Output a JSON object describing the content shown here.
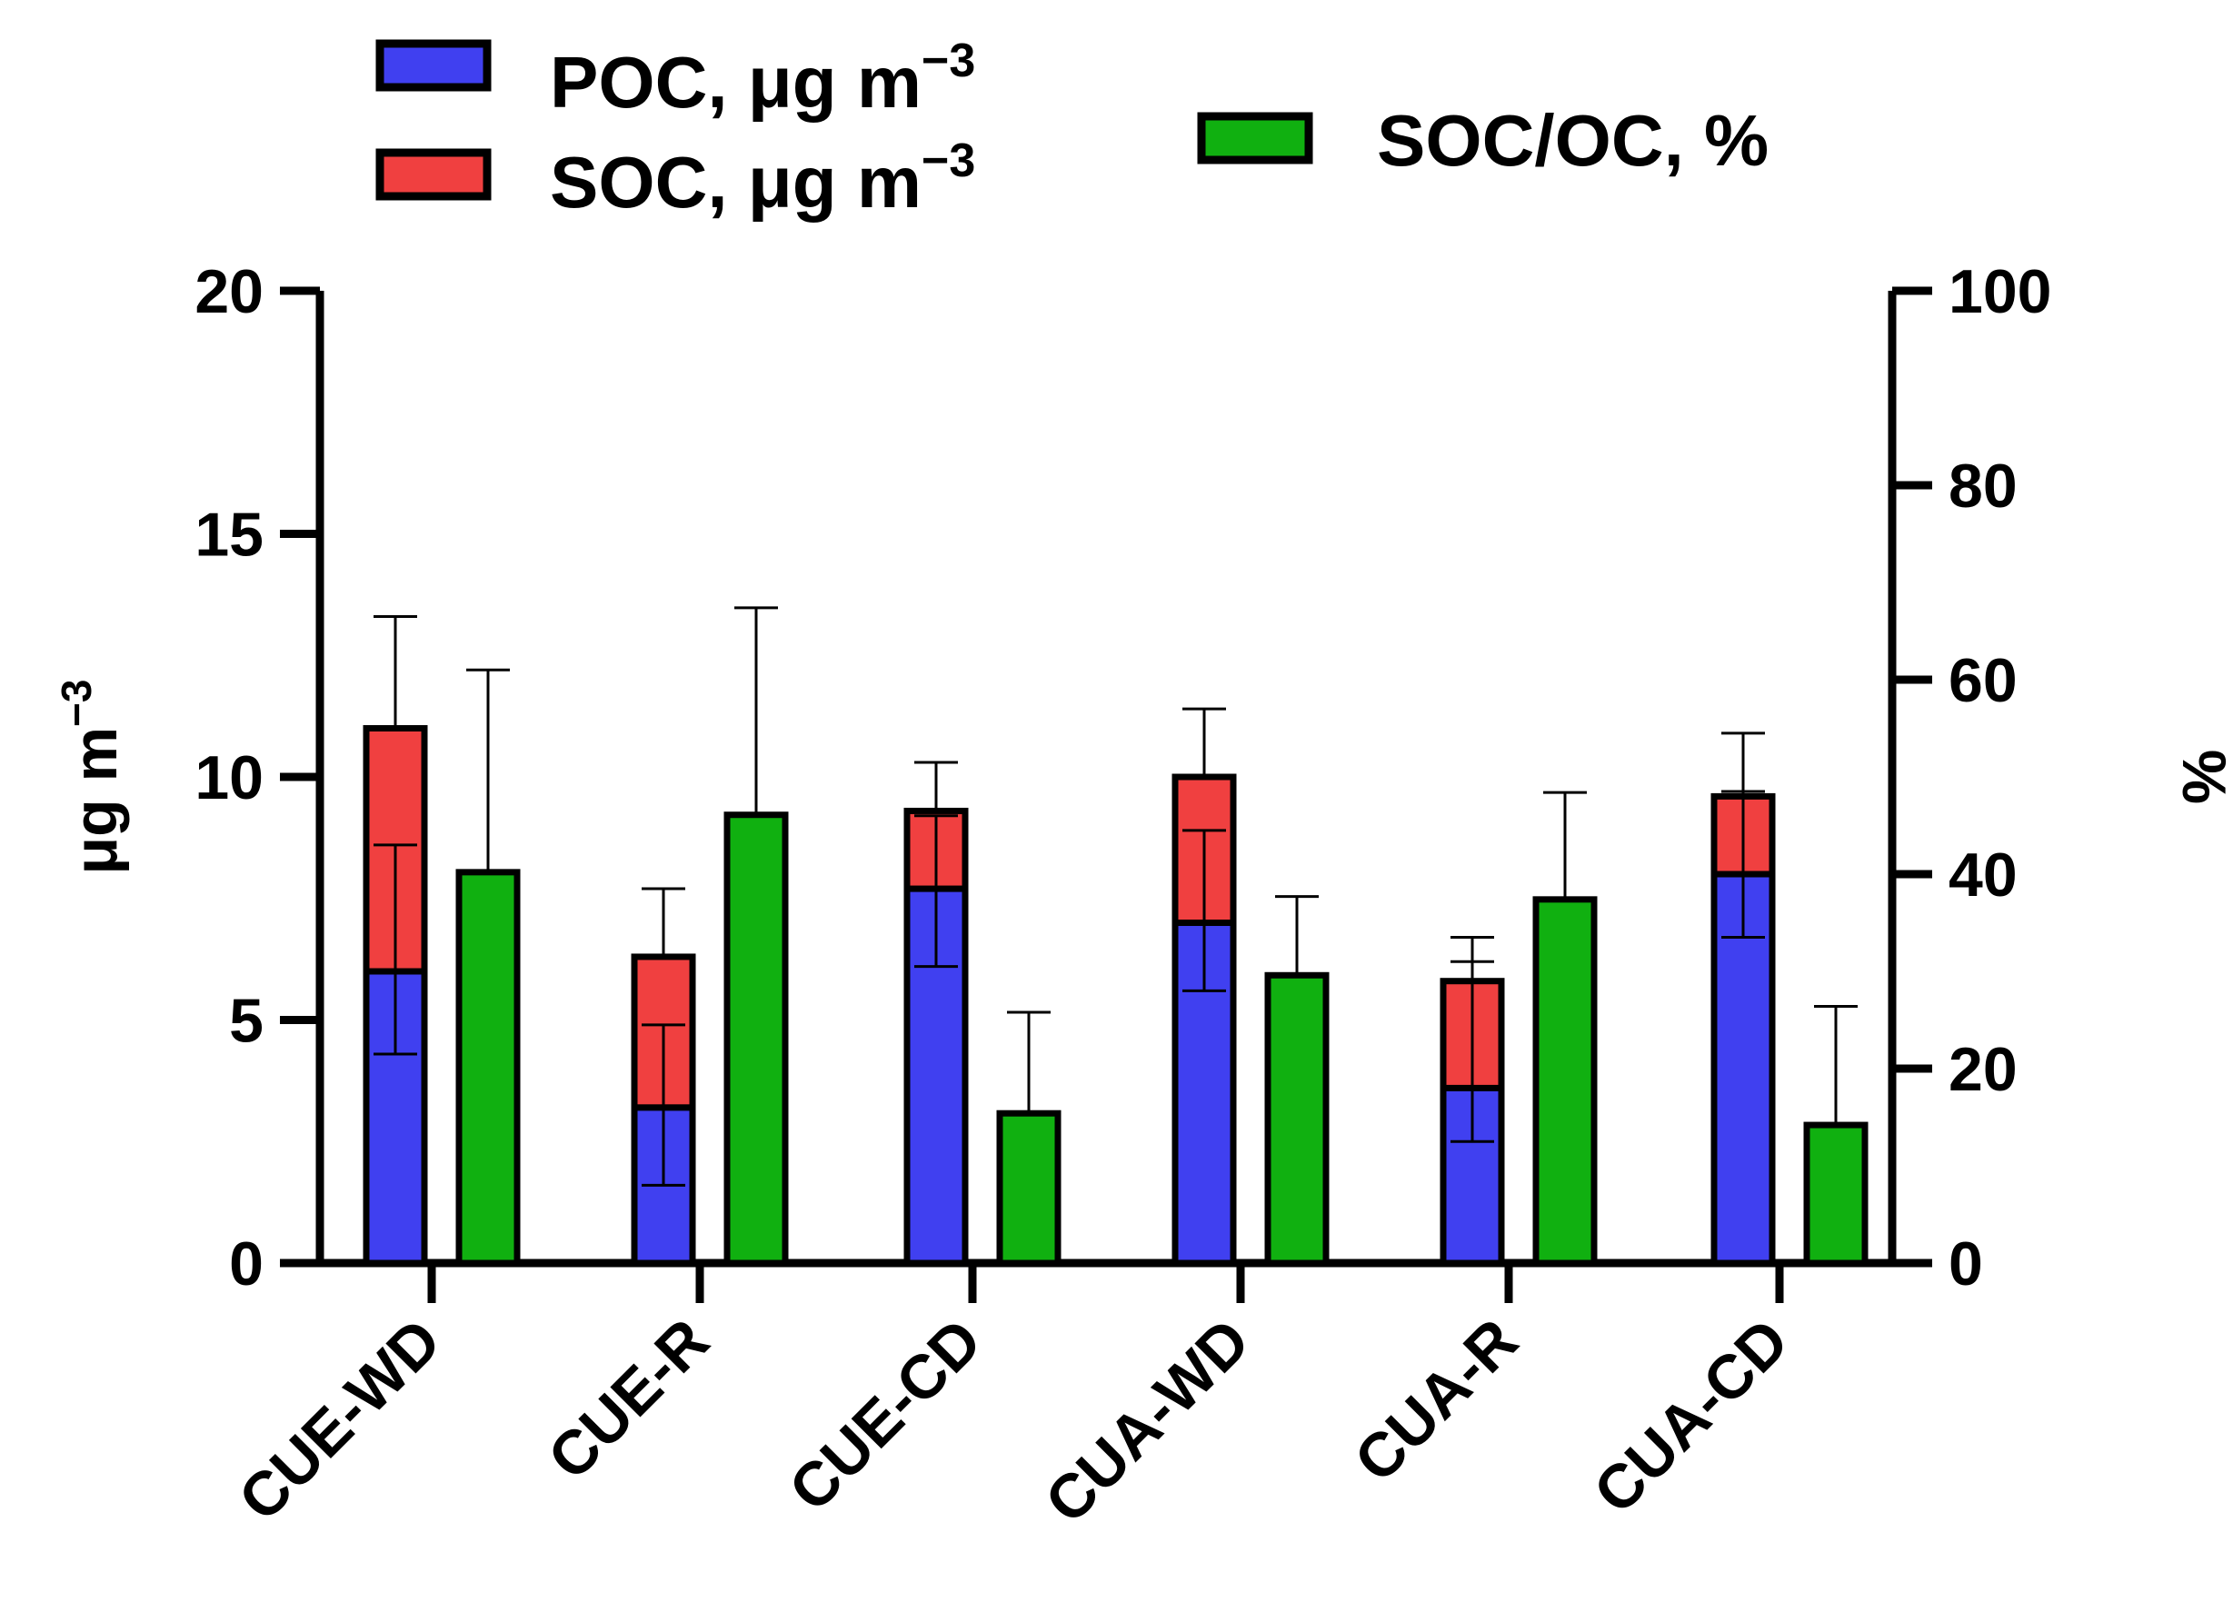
{
  "chart_data": {
    "type": "bar",
    "categories": [
      "CUE-WD",
      "CUE-R",
      "CUE-CD",
      "CUA-WD",
      "CUA-R",
      "CUA-CD"
    ],
    "series": [
      {
        "name": "POC, μg m⁻³",
        "axis": "left",
        "stack": "oc",
        "color": "#4040f0",
        "values": [
          6.0,
          3.2,
          7.7,
          7.0,
          3.6,
          8.0
        ],
        "error_center": [
          6.0,
          3.2,
          7.7,
          7.0,
          3.6,
          8.0
        ],
        "error_low": [
          4.3,
          1.6,
          6.1,
          5.6,
          2.5,
          6.7
        ],
        "error_high": [
          8.6,
          4.9,
          9.2,
          8.9,
          6.2,
          9.7
        ]
      },
      {
        "name": "SOC, μg m⁻³",
        "axis": "left",
        "stack": "oc",
        "color": "#f04040",
        "values": [
          5.0,
          3.1,
          1.6,
          3.0,
          2.2,
          1.6
        ],
        "error_center": [
          11.0,
          6.3,
          9.3,
          10.0,
          5.8,
          9.6
        ],
        "error_high": [
          13.3,
          7.7,
          10.3,
          11.4,
          6.7,
          10.9
        ]
      },
      {
        "name": "SOC/OC, %",
        "axis": "right",
        "color": "#10b010",
        "values": [
          40.2,
          46.1,
          15.4,
          29.6,
          37.4,
          14.2
        ],
        "error_high": [
          61.0,
          67.4,
          25.8,
          37.7,
          48.4,
          26.4
        ]
      }
    ],
    "y_left": {
      "label": "μg m⁻³",
      "ylim": [
        0,
        20
      ],
      "ticks": [
        0,
        5,
        10,
        15,
        20
      ]
    },
    "y_right": {
      "label": "%",
      "ylim": [
        0,
        100
      ],
      "ticks": [
        0,
        20,
        40,
        60,
        80,
        100
      ]
    },
    "title": "",
    "xlabel": "",
    "legend": [
      {
        "label_main": "POC,  μg m",
        "label_sup": "−3",
        "color": "#4040f0"
      },
      {
        "label_main": "SOC,  μg m",
        "label_sup": "−3",
        "color": "#f04040"
      },
      {
        "label_main": "SOC/OC, %",
        "label_sup": "",
        "color": "#10b010"
      }
    ],
    "legend_position": "top",
    "grid": false
  }
}
